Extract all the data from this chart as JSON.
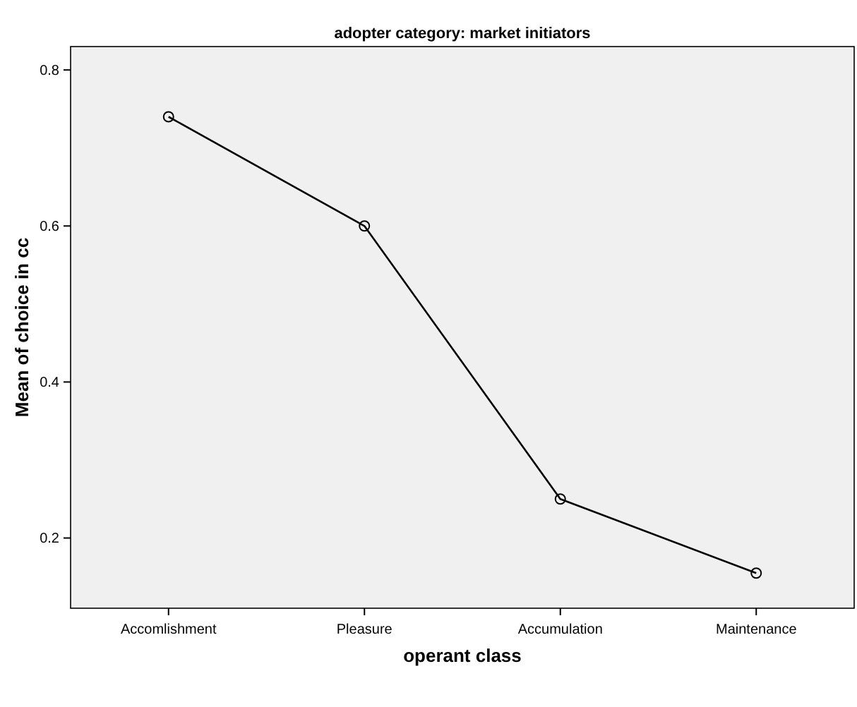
{
  "chart_data": {
    "type": "line",
    "title": "adopter category: market initiators",
    "xlabel": "operant class",
    "ylabel": "Mean of choice in cc",
    "categories": [
      "Accomlishment",
      "Pleasure",
      "Accumulation",
      "Maintenance"
    ],
    "series": [
      {
        "color": "#000000",
        "values": [
          0.74,
          0.6,
          0.25,
          0.155
        ]
      }
    ],
    "ylim": [
      0.11,
      0.83
    ],
    "yticks": [
      0.2,
      0.4,
      0.6,
      0.8
    ],
    "marker": "circle",
    "line_style": "solid",
    "grid": false
  }
}
